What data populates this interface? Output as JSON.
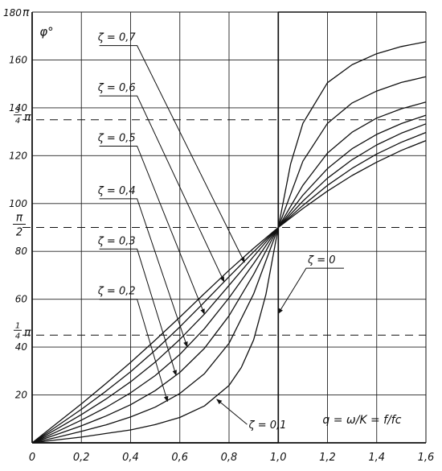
{
  "chart_data": {
    "type": "line",
    "title": "",
    "xlabel": "q = ω/K = f/fc",
    "ylabel": "φ°",
    "xlim": [
      0,
      1.6
    ],
    "ylim": [
      0,
      180
    ],
    "x_ticks": [
      "0",
      "0,2",
      "0,4",
      "0,6",
      "0,8",
      "1,0",
      "1,2",
      "1,4",
      "1,6"
    ],
    "y_ticks": [
      "20",
      "40",
      "60",
      "80",
      "100",
      "120",
      "140",
      "160",
      "180"
    ],
    "y_top_label": "π",
    "grid": true,
    "reference_lines": [
      {
        "y": 45,
        "label": "1/4 π",
        "num": "1",
        "den": "4",
        "sym": "π"
      },
      {
        "y": 90,
        "label": "π/2",
        "num": "π",
        "den": "2",
        "sym": ""
      },
      {
        "y": 135,
        "label": "3/4 π",
        "num": "3",
        "den": "4",
        "sym": "π"
      }
    ],
    "series": [
      {
        "name": "ζ = 0",
        "x": [
          0,
          1.0,
          1.0,
          1.6
        ],
        "y": [
          0,
          0,
          180,
          180
        ]
      },
      {
        "name": "ζ = 0,1",
        "x": [
          0,
          0.1,
          0.2,
          0.3,
          0.4,
          0.5,
          0.6,
          0.7,
          0.8,
          0.85,
          0.9,
          0.95,
          1.0,
          1.05,
          1.1,
          1.2,
          1.3,
          1.4,
          1.5,
          1.6
        ],
        "y": [
          0,
          1.2,
          2.4,
          3.9,
          5.4,
          7.6,
          10.6,
          15.4,
          24,
          31.5,
          43,
          62,
          90,
          116.5,
          133.5,
          150.5,
          158,
          162.6,
          165.6,
          167.6
        ]
      },
      {
        "name": "ζ = 0,2",
        "x": [
          0,
          0.1,
          0.2,
          0.3,
          0.4,
          0.5,
          0.6,
          0.7,
          0.8,
          0.9,
          1.0,
          1.1,
          1.2,
          1.3,
          1.4,
          1.5,
          1.6
        ],
        "y": [
          0,
          2.3,
          4.8,
          7.5,
          10.8,
          14.9,
          20.6,
          28.9,
          41.6,
          62.2,
          90,
          117.7,
          133.5,
          142,
          147,
          150.6,
          153
        ]
      },
      {
        "name": "ζ = 0,3",
        "x": [
          0,
          0.1,
          0.2,
          0.3,
          0.4,
          0.5,
          0.6,
          0.7,
          0.8,
          0.9,
          1.0,
          1.1,
          1.2,
          1.3,
          1.4,
          1.5,
          1.6
        ],
        "y": [
          0,
          3.5,
          7.1,
          11.2,
          15.9,
          21.8,
          29.4,
          39.5,
          53.1,
          70.4,
          90,
          107.6,
          121.1,
          129.8,
          135.7,
          139.6,
          142.4
        ]
      },
      {
        "name": "ζ = 0,4",
        "x": [
          0,
          0.1,
          0.2,
          0.3,
          0.4,
          0.5,
          0.6,
          0.7,
          0.8,
          0.9,
          1.0,
          1.1,
          1.2,
          1.3,
          1.4,
          1.5,
          1.6
        ],
        "y": [
          0,
          4.6,
          9.5,
          14.8,
          20.9,
          28.1,
          36.9,
          47.7,
          60.6,
          74.9,
          90,
          103.5,
          114.6,
          122.9,
          128.9,
          133.4,
          136.9
        ]
      },
      {
        "name": "ζ = 0,5",
        "x": [
          0,
          0.1,
          0.2,
          0.3,
          0.4,
          0.5,
          0.6,
          0.7,
          0.8,
          0.9,
          1.0,
          1.1,
          1.2,
          1.3,
          1.4,
          1.5,
          1.6
        ],
        "y": [
          0,
          5.8,
          11.8,
          18.3,
          25.5,
          33.7,
          43.2,
          53.8,
          65.8,
          77.9,
          90,
          101,
          110.6,
          118.3,
          124.5,
          129.4,
          133.3
        ]
      },
      {
        "name": "ζ = 0,6",
        "x": [
          0,
          0.1,
          0.2,
          0.3,
          0.4,
          0.5,
          0.6,
          0.7,
          0.8,
          0.9,
          1.0,
          1.1,
          1.2,
          1.3,
          1.4,
          1.5,
          1.6
        ],
        "y": [
          0,
          6.9,
          14,
          21.6,
          29.7,
          38.7,
          48.4,
          58.8,
          69.4,
          79.8,
          90,
          99.2,
          107.6,
          114.7,
          120.7,
          125.6,
          129.7
        ]
      },
      {
        "name": "ζ = 0,7",
        "x": [
          0,
          0.1,
          0.2,
          0.3,
          0.4,
          0.5,
          0.6,
          0.7,
          0.8,
          0.9,
          1.0,
          1.1,
          1.2,
          1.3,
          1.4,
          1.5,
          1.6
        ],
        "y": [
          0,
          8.1,
          16.3,
          24.8,
          33.6,
          42.9,
          52.5,
          62.4,
          72.1,
          81.3,
          90,
          97.9,
          105.2,
          111.7,
          117.3,
          122.2,
          126.3
        ]
      }
    ],
    "curve_labels": [
      {
        "text": "ζ = 0,7",
        "pos": [
          0.42,
          168
        ],
        "arrow_to": [
          0.863,
          75.4
        ]
      },
      {
        "text": "ζ = 0,6",
        "pos": [
          0.42,
          147
        ],
        "arrow_to": [
          0.78,
          67.3
        ]
      },
      {
        "text": "ζ = 0,5",
        "pos": [
          0.42,
          126
        ],
        "arrow_to": [
          0.7,
          53.8
        ]
      },
      {
        "text": "ζ = 0,4",
        "pos": [
          0.42,
          104
        ],
        "arrow_to": [
          0.63,
          40.1
        ]
      },
      {
        "text": "ζ = 0,3",
        "pos": [
          0.42,
          83
        ],
        "arrow_to": [
          0.585,
          28.2
        ]
      },
      {
        "text": "ζ = 0,2",
        "pos": [
          0.42,
          62
        ],
        "arrow_to": [
          0.55,
          17.3
        ]
      },
      {
        "text": "ζ = 0,1",
        "pos": [
          0.88,
          6
        ],
        "arrow_to": [
          0.75,
          18.2
        ]
      },
      {
        "text": "ζ = 0",
        "pos": [
          1.12,
          75
        ],
        "arrow_to": [
          1.0,
          54
        ]
      }
    ],
    "axis_label_pos": {
      "ylabel": [
        0.03,
        170
      ],
      "xlabel": [
        1.18,
        8
      ]
    }
  }
}
